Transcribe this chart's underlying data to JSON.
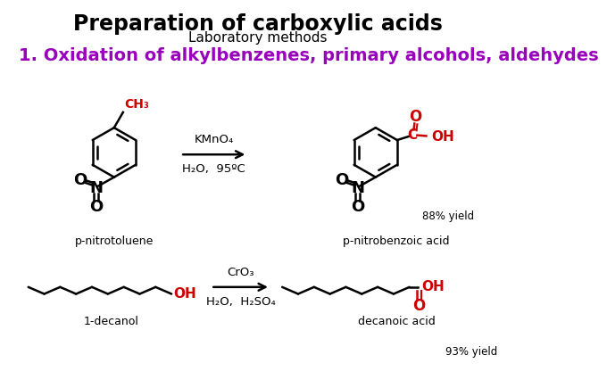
{
  "title": "Preparation of carboxylic acids",
  "subtitle": "Laboratory methods",
  "section_header": "1. Oxidation of alkylbenzenes, primary alcohols, aldehydes",
  "title_fontsize": 17,
  "subtitle_fontsize": 11,
  "header_fontsize": 14,
  "header_color": "#9900BB",
  "background_color": "#ffffff",
  "reaction1": {
    "reagent_label": "KMnO₄",
    "condition_label": "H₂O,  95ºC",
    "yield_label": "88% yield",
    "reactant_name": "p-nitrotoluene",
    "product_name": "p-nitrobenzoic acid"
  },
  "reaction2": {
    "reagent_label": "CrO₃",
    "condition_label": "H₂O,  H₂SO₄",
    "yield_label": "93% yield",
    "reactant_name": "1-decanol",
    "product_name": "decanoic acid"
  }
}
